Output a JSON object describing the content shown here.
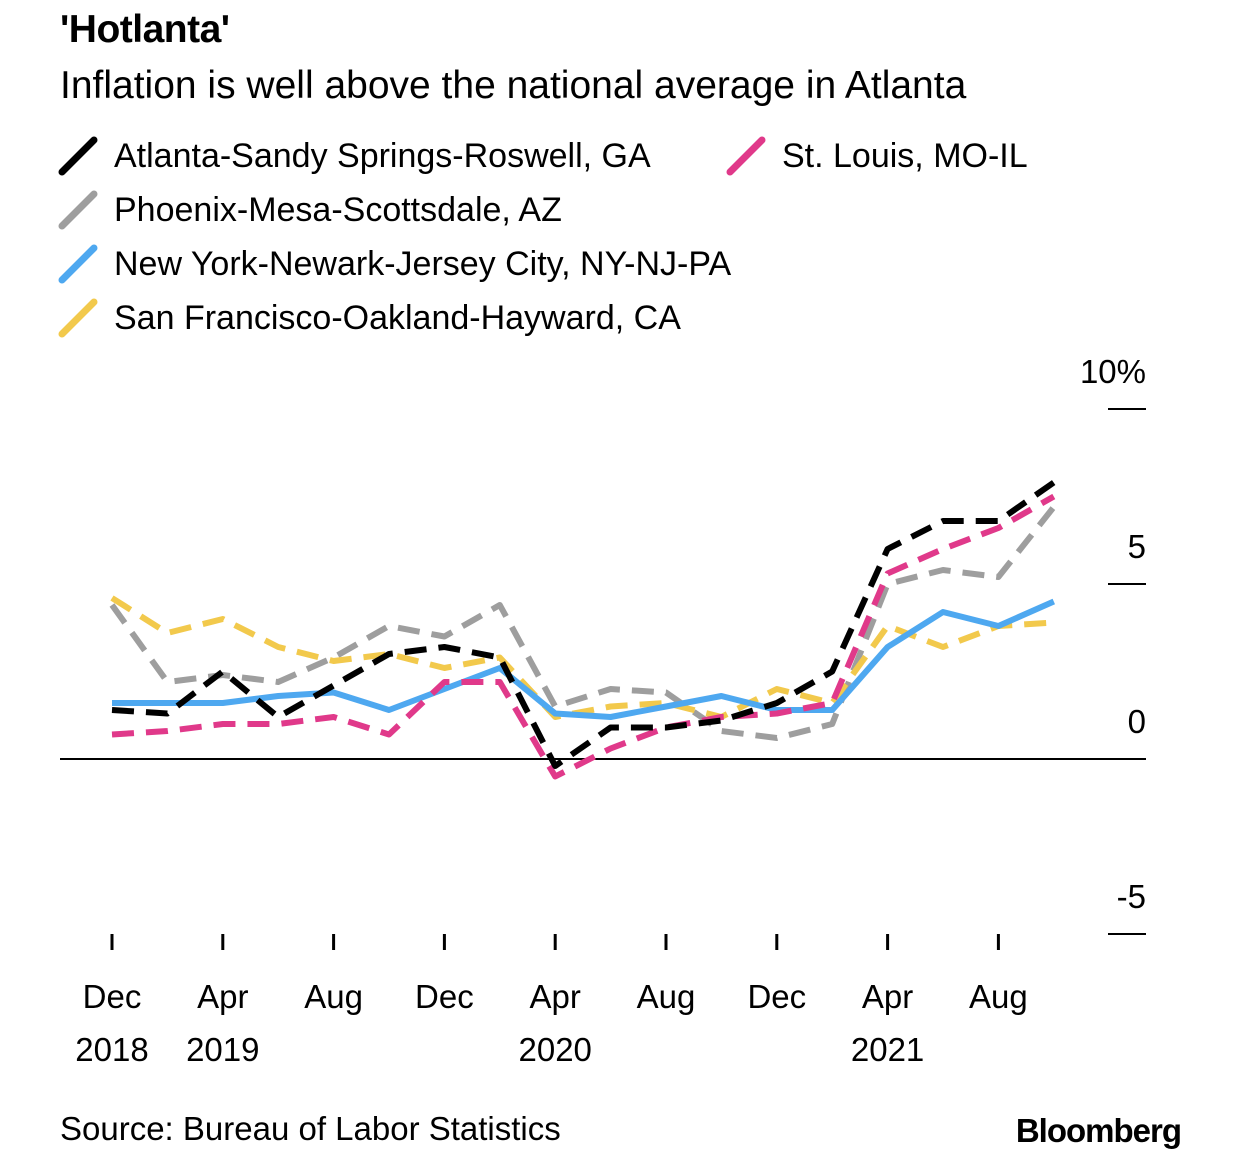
{
  "header": {
    "title": "'Hotlanta'",
    "subtitle": "Inflation is well above the national average in Atlanta"
  },
  "footer": {
    "source": "Source: Bureau of Labor Statistics",
    "brand": "Bloomberg"
  },
  "chart_data": {
    "type": "line",
    "title": "'Hotlanta'",
    "subtitle": "Inflation is well above the national average in Atlanta",
    "xlabel": "",
    "ylabel": "",
    "ylim": [
      -5,
      10
    ],
    "y_ticks": [
      {
        "value": 10,
        "label": "10%"
      },
      {
        "value": 5,
        "label": "5"
      },
      {
        "value": 0,
        "label": "0"
      },
      {
        "value": -5,
        "label": "-5"
      }
    ],
    "x_ticks": [
      {
        "month": "2018-12",
        "label": "Dec",
        "year": "2018"
      },
      {
        "month": "2019-04",
        "label": "Apr",
        "year": "2019"
      },
      {
        "month": "2019-08",
        "label": "Aug",
        "year": ""
      },
      {
        "month": "2019-12",
        "label": "Dec",
        "year": ""
      },
      {
        "month": "2020-04",
        "label": "Apr",
        "year": "2020"
      },
      {
        "month": "2020-08",
        "label": "Aug",
        "year": ""
      },
      {
        "month": "2020-12",
        "label": "Dec",
        "year": ""
      },
      {
        "month": "2021-04",
        "label": "Apr",
        "year": "2021"
      },
      {
        "month": "2021-08",
        "label": "Aug",
        "year": ""
      }
    ],
    "legend_placement": "top",
    "grid": false,
    "series": [
      {
        "name": "Phoenix-Mesa-Scottsdale, AZ",
        "color": "#9e9e9e",
        "dash": "dashed",
        "points": [
          [
            "2018-12",
            4.4
          ],
          [
            "2019-02",
            2.2
          ],
          [
            "2019-04",
            2.4
          ],
          [
            "2019-06",
            2.2
          ],
          [
            "2019-08",
            2.9
          ],
          [
            "2019-10",
            3.8
          ],
          [
            "2019-12",
            3.5
          ],
          [
            "2020-02",
            4.4
          ],
          [
            "2020-04",
            1.5
          ],
          [
            "2020-06",
            2.0
          ],
          [
            "2020-08",
            1.9
          ],
          [
            "2020-10",
            0.8
          ],
          [
            "2020-12",
            0.6
          ],
          [
            "2021-02",
            1.0
          ],
          [
            "2021-04",
            5.0
          ],
          [
            "2021-06",
            5.4
          ],
          [
            "2021-08",
            5.2
          ],
          [
            "2021-10",
            7.2
          ]
        ]
      },
      {
        "name": "San Francisco-Oakland-Hayward, CA",
        "color": "#f2c94c",
        "dash": "dashed",
        "points": [
          [
            "2018-12",
            4.6
          ],
          [
            "2019-02",
            3.6
          ],
          [
            "2019-04",
            4.0
          ],
          [
            "2019-06",
            3.2
          ],
          [
            "2019-08",
            2.8
          ],
          [
            "2019-10",
            3.0
          ],
          [
            "2019-12",
            2.6
          ],
          [
            "2020-02",
            2.9
          ],
          [
            "2020-04",
            1.2
          ],
          [
            "2020-06",
            1.5
          ],
          [
            "2020-08",
            1.6
          ],
          [
            "2020-10",
            1.2
          ],
          [
            "2020-12",
            2.0
          ],
          [
            "2021-02",
            1.6
          ],
          [
            "2021-04",
            3.8
          ],
          [
            "2021-06",
            3.2
          ],
          [
            "2021-08",
            3.8
          ],
          [
            "2021-10",
            3.9
          ]
        ]
      },
      {
        "name": "New York-Newark-Jersey City, NY-NJ-PA",
        "color": "#4ea8f0",
        "dash": "solid",
        "points": [
          [
            "2018-12",
            1.6
          ],
          [
            "2019-02",
            1.6
          ],
          [
            "2019-04",
            1.6
          ],
          [
            "2019-06",
            1.8
          ],
          [
            "2019-08",
            1.9
          ],
          [
            "2019-10",
            1.4
          ],
          [
            "2019-12",
            2.0
          ],
          [
            "2020-02",
            2.6
          ],
          [
            "2020-04",
            1.3
          ],
          [
            "2020-06",
            1.2
          ],
          [
            "2020-08",
            1.5
          ],
          [
            "2020-10",
            1.8
          ],
          [
            "2020-12",
            1.4
          ],
          [
            "2021-02",
            1.4
          ],
          [
            "2021-04",
            3.2
          ],
          [
            "2021-06",
            4.2
          ],
          [
            "2021-08",
            3.8
          ],
          [
            "2021-10",
            4.5
          ]
        ]
      },
      {
        "name": "St. Louis, MO-IL",
        "color": "#e0398a",
        "dash": "dashed",
        "points": [
          [
            "2018-12",
            0.7
          ],
          [
            "2019-02",
            0.8
          ],
          [
            "2019-04",
            1.0
          ],
          [
            "2019-06",
            1.0
          ],
          [
            "2019-08",
            1.2
          ],
          [
            "2019-10",
            0.7
          ],
          [
            "2019-12",
            2.2
          ],
          [
            "2020-02",
            2.2
          ],
          [
            "2020-04",
            -0.5
          ],
          [
            "2020-06",
            0.3
          ],
          [
            "2020-08",
            0.9
          ],
          [
            "2020-10",
            1.2
          ],
          [
            "2020-12",
            1.3
          ],
          [
            "2021-02",
            1.6
          ],
          [
            "2021-04",
            5.3
          ],
          [
            "2021-06",
            6.0
          ],
          [
            "2021-08",
            6.6
          ],
          [
            "2021-10",
            7.5
          ]
        ]
      },
      {
        "name": "Atlanta-Sandy Springs-Roswell, GA",
        "color": "#000000",
        "dash": "dashed",
        "points": [
          [
            "2018-12",
            1.4
          ],
          [
            "2019-02",
            1.3
          ],
          [
            "2019-04",
            2.5
          ],
          [
            "2019-06",
            1.2
          ],
          [
            "2019-08",
            2.1
          ],
          [
            "2019-10",
            3.0
          ],
          [
            "2019-12",
            3.2
          ],
          [
            "2020-02",
            2.9
          ],
          [
            "2020-04",
            -0.2
          ],
          [
            "2020-06",
            0.9
          ],
          [
            "2020-08",
            0.9
          ],
          [
            "2020-10",
            1.1
          ],
          [
            "2020-12",
            1.6
          ],
          [
            "2021-02",
            2.5
          ],
          [
            "2021-04",
            6.0
          ],
          [
            "2021-06",
            6.8
          ],
          [
            "2021-08",
            6.8
          ],
          [
            "2021-10",
            7.9
          ]
        ]
      }
    ],
    "legend": [
      {
        "name": "Atlanta-Sandy Springs-Roswell, GA",
        "color": "#000000"
      },
      {
        "name": "St. Louis, MO-IL",
        "color": "#e0398a"
      },
      {
        "name": "Phoenix-Mesa-Scottsdale, AZ",
        "color": "#9e9e9e"
      },
      {
        "name": "New York-Newark-Jersey City, NY-NJ-PA",
        "color": "#4ea8f0"
      },
      {
        "name": "San Francisco-Oakland-Hayward, CA",
        "color": "#f2c94c"
      }
    ]
  }
}
